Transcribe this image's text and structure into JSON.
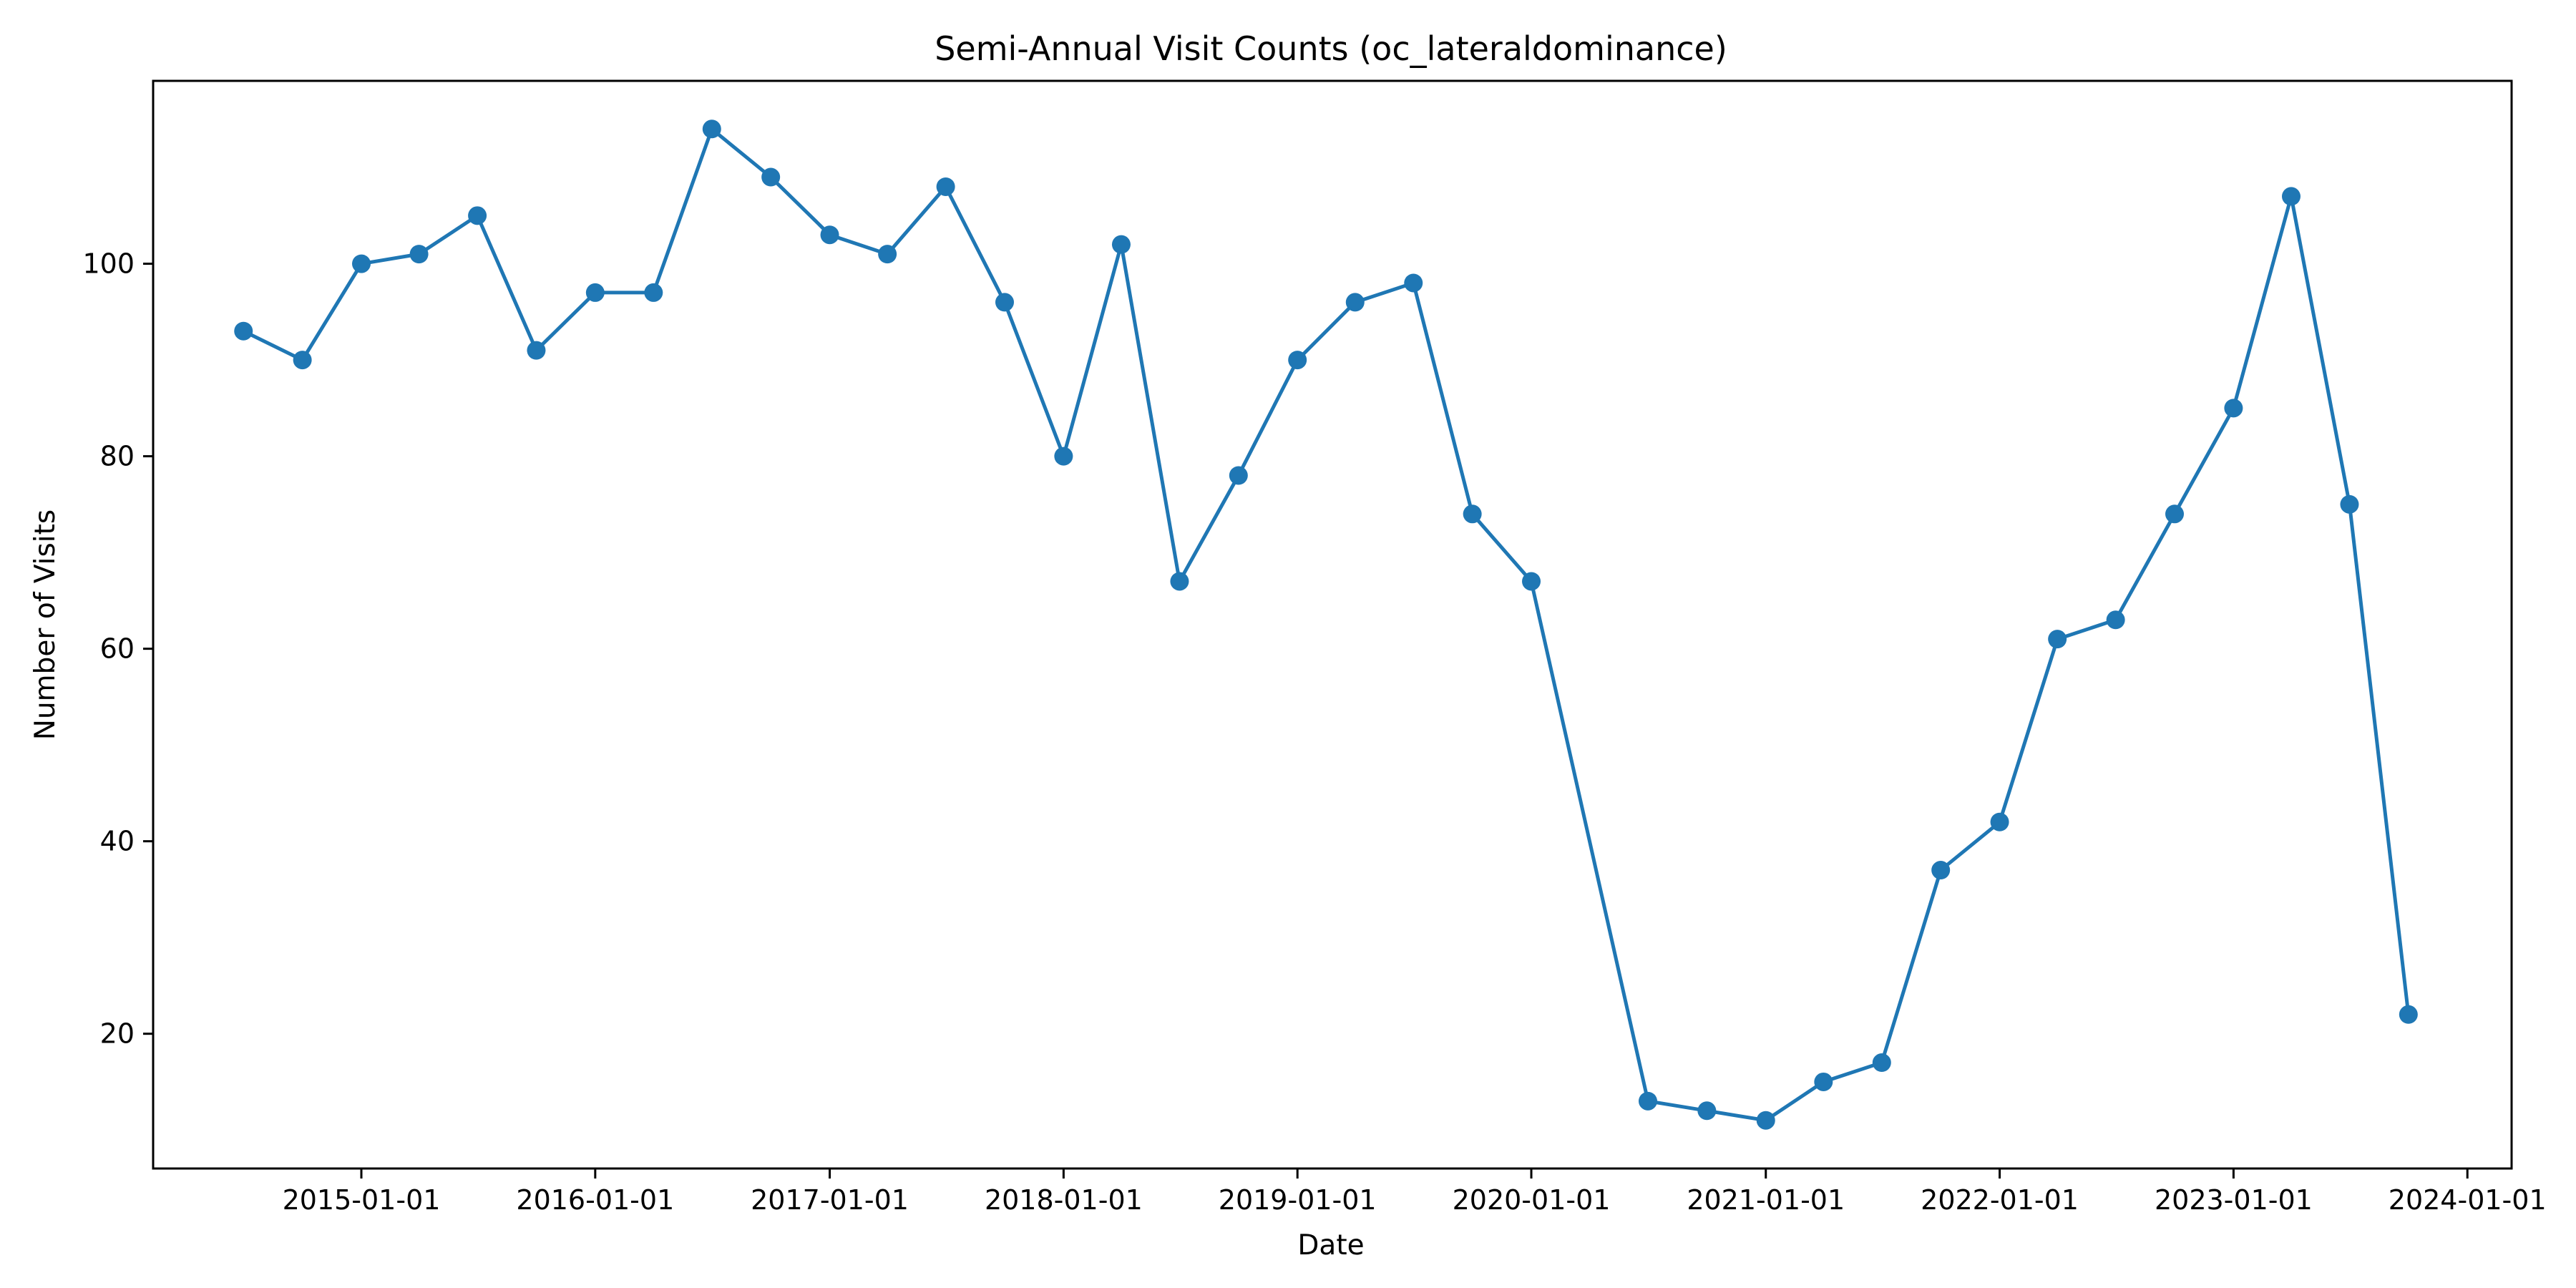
{
  "chart_data": {
    "type": "line",
    "title": "Semi-Annual Visit Counts (oc_lateraldominance)",
    "xlabel": "Date",
    "ylabel": "Number of Visits",
    "x_tick_labels": [
      "2015-01-01",
      "2016-01-01",
      "2017-01-01",
      "2018-01-01",
      "2019-01-01",
      "2020-01-01",
      "2021-01-01",
      "2022-01-01",
      "2023-01-01",
      "2024-01-01"
    ],
    "y_ticks": [
      20,
      40,
      60,
      80,
      100
    ],
    "ylim": [
      6,
      119
    ],
    "xlim": [
      "2014-02-10",
      "2024-03-10"
    ],
    "grid": false,
    "color": "#1f77b4",
    "series": [
      {
        "x": [
          "2014-07-01",
          "2014-10-01",
          "2015-01-01",
          "2015-04-01",
          "2015-07-01",
          "2015-10-01",
          "2016-01-01",
          "2016-04-01",
          "2016-07-01",
          "2016-10-01",
          "2017-01-01",
          "2017-04-01",
          "2017-07-01",
          "2017-10-01",
          "2018-01-01",
          "2018-04-01",
          "2018-07-01",
          "2018-10-01",
          "2019-01-01",
          "2019-04-01",
          "2019-07-01",
          "2019-10-01",
          "2020-01-01",
          "2020-07-01",
          "2020-10-01",
          "2021-01-01",
          "2021-04-01",
          "2021-07-01",
          "2021-10-01",
          "2022-01-01",
          "2022-04-01",
          "2022-07-01",
          "2022-10-01",
          "2023-01-01",
          "2023-04-01",
          "2023-07-01",
          "2023-10-01"
        ],
        "values": [
          93,
          90,
          100,
          101,
          105,
          91,
          97,
          97,
          114,
          109,
          103,
          101,
          108,
          96,
          80,
          102,
          67,
          78,
          90,
          96,
          98,
          74,
          67,
          13,
          12,
          11,
          15,
          17,
          37,
          42,
          61,
          63,
          74,
          85,
          107,
          75,
          22
        ]
      }
    ]
  }
}
